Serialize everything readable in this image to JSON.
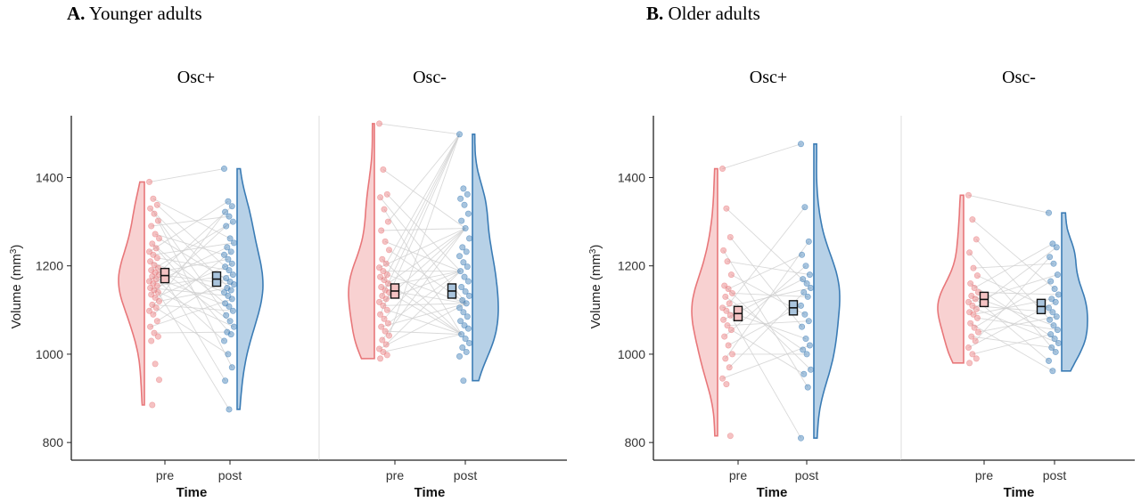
{
  "figure": {
    "panels": [
      {
        "letter": "A.",
        "title": "Younger adults"
      },
      {
        "letter": "B.",
        "title": "Older adults"
      }
    ]
  },
  "colors": {
    "pre": "#e8777a",
    "pre_fill": "#f8cfcf",
    "post": "#3b7cb5",
    "post_fill": "#b3cfe6",
    "link": "#d0d0d0",
    "axis": "#222222"
  },
  "chart_data": [
    {
      "type": "raincloud",
      "panel": "A. Younger adults",
      "facet": "Osc+",
      "xlabel": "Time",
      "ylabel": "Volume (mm3)",
      "categories": [
        "pre",
        "post"
      ],
      "ylim": [
        760,
        1540
      ],
      "yticks": [
        800,
        1000,
        1200,
        1400
      ],
      "means": {
        "pre": 1178,
        "post": 1170
      },
      "pre_range": [
        885,
        1390
      ],
      "post_range": [
        875,
        1420
      ],
      "pre_values": [
        1390,
        1352,
        1338,
        1330,
        1318,
        1302,
        1290,
        1272,
        1262,
        1250,
        1240,
        1232,
        1225,
        1218,
        1210,
        1202,
        1195,
        1190,
        1185,
        1180,
        1176,
        1170,
        1165,
        1160,
        1155,
        1150,
        1145,
        1140,
        1135,
        1128,
        1120,
        1112,
        1105,
        1098,
        1090,
        1075,
        1062,
        1048,
        1040,
        1030,
        978,
        942,
        885
      ],
      "post_values": [
        1420,
        1346,
        1335,
        1322,
        1312,
        1300,
        1290,
        1262,
        1252,
        1242,
        1232,
        1225,
        1215,
        1205,
        1198,
        1190,
        1180,
        1172,
        1164,
        1158,
        1150,
        1145,
        1140,
        1132,
        1125,
        1115,
        1108,
        1098,
        1088,
        1075,
        1062,
        1050,
        1045,
        1030,
        1000,
        970,
        940,
        875
      ]
    },
    {
      "type": "raincloud",
      "panel": "A. Younger adults",
      "facet": "Osc-",
      "xlabel": "Time",
      "categories": [
        "pre",
        "post"
      ],
      "ylim": [
        760,
        1540
      ],
      "means": {
        "pre": 1143,
        "post": 1143
      },
      "pre_range": [
        990,
        1522
      ],
      "post_range": [
        940,
        1498
      ],
      "pre_values": [
        1522,
        1418,
        1362,
        1355,
        1328,
        1300,
        1280,
        1255,
        1236,
        1215,
        1205,
        1196,
        1188,
        1180,
        1175,
        1168,
        1160,
        1152,
        1145,
        1140,
        1132,
        1125,
        1118,
        1110,
        1100,
        1090,
        1080,
        1070,
        1062,
        1052,
        1042,
        1032,
        1022,
        1012,
        1005,
        998,
        990
      ],
      "post_values": [
        1498,
        1375,
        1362,
        1352,
        1338,
        1318,
        1302,
        1285,
        1262,
        1242,
        1232,
        1222,
        1208,
        1198,
        1188,
        1175,
        1165,
        1152,
        1142,
        1132,
        1122,
        1115,
        1105,
        1095,
        1085,
        1075,
        1065,
        1058,
        1045,
        1035,
        1025,
        1015,
        1005,
        995,
        940
      ]
    },
    {
      "type": "raincloud",
      "panel": "B. Older adults",
      "facet": "Osc+",
      "xlabel": "Time",
      "ylabel": "Volume (mm3)",
      "categories": [
        "pre",
        "post"
      ],
      "ylim": [
        760,
        1540
      ],
      "yticks": [
        800,
        1000,
        1200,
        1400
      ],
      "means": {
        "pre": 1092,
        "post": 1105
      },
      "pre_range": [
        815,
        1420
      ],
      "post_range": [
        810,
        1476
      ],
      "pre_values": [
        1420,
        1330,
        1265,
        1235,
        1210,
        1180,
        1155,
        1148,
        1138,
        1130,
        1115,
        1105,
        1098,
        1088,
        1078,
        1065,
        1055,
        1040,
        1020,
        1000,
        990,
        970,
        945,
        932,
        815
      ],
      "post_values": [
        1476,
        1333,
        1255,
        1225,
        1200,
        1180,
        1170,
        1160,
        1150,
        1140,
        1130,
        1110,
        1090,
        1075,
        1062,
        1035,
        1020,
        1010,
        1000,
        965,
        955,
        925,
        810
      ]
    },
    {
      "type": "raincloud",
      "panel": "B. Older adults",
      "facet": "Osc-",
      "xlabel": "Time",
      "categories": [
        "pre",
        "post"
      ],
      "ylim": [
        760,
        1540
      ],
      "means": {
        "pre": 1124,
        "post": 1108
      },
      "pre_range": [
        980,
        1360
      ],
      "post_range": [
        962,
        1320
      ],
      "pre_values": [
        1360,
        1305,
        1260,
        1230,
        1195,
        1178,
        1160,
        1150,
        1140,
        1132,
        1125,
        1118,
        1110,
        1102,
        1095,
        1090,
        1082,
        1070,
        1060,
        1050,
        1040,
        1030,
        1015,
        1000,
        990,
        980
      ],
      "post_values": [
        1320,
        1250,
        1242,
        1220,
        1205,
        1180,
        1165,
        1148,
        1135,
        1125,
        1118,
        1105,
        1095,
        1085,
        1078,
        1065,
        1055,
        1045,
        1035,
        1025,
        1015,
        1005,
        985,
        962
      ]
    }
  ]
}
